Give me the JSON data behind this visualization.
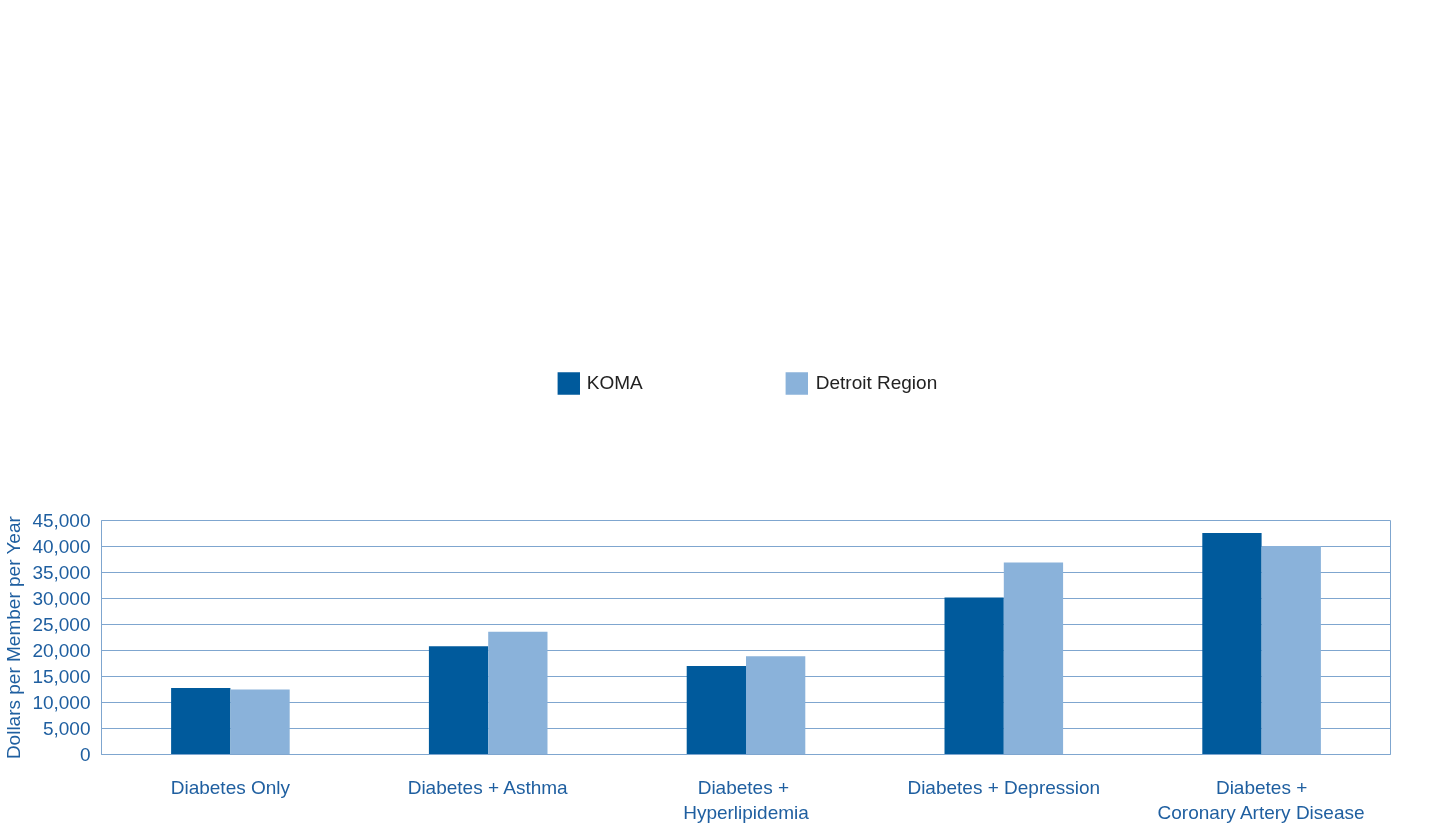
{
  "chart_data": {
    "type": "bar",
    "ylabel": "Dollars per Member per Year",
    "categories": [
      "Diabetes Only",
      "Diabetes + Asthma",
      "Diabetes  +\nHyperlipidemia",
      "Diabetes + Depression",
      "Diabetes +\nCoronary Artery Disease"
    ],
    "series": [
      {
        "name": "KOMA",
        "color": "#005a9c",
        "values": [
          12800,
          20800,
          17000,
          30200,
          42600
        ]
      },
      {
        "name": "Detroit Region",
        "color": "#8ab2da",
        "values": [
          12500,
          23600,
          18900,
          36900,
          40100
        ]
      }
    ],
    "ylim": [
      0,
      45000
    ],
    "yticks": [
      {
        "value": 0,
        "label": "0"
      },
      {
        "value": 5000,
        "label": "5,000"
      },
      {
        "value": 10000,
        "label": "10,000"
      },
      {
        "value": 15000,
        "label": "15,000"
      },
      {
        "value": 20000,
        "label": "20,000"
      },
      {
        "value": 25000,
        "label": "25,000"
      },
      {
        "value": 30000,
        "label": "30,000"
      },
      {
        "value": 35000,
        "label": "35,000"
      },
      {
        "value": 40000,
        "label": "40,000"
      },
      {
        "value": 45000,
        "label": "45,000"
      }
    ],
    "grid": "y",
    "legend": "top"
  }
}
